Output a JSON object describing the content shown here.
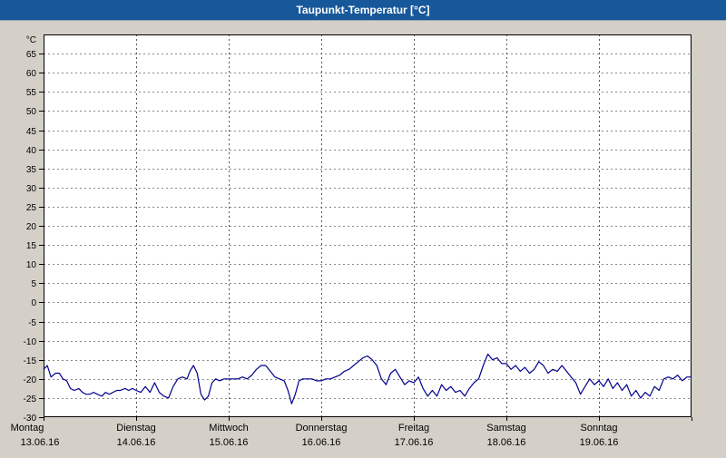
{
  "window": {
    "title": "Taupunkt-Temperatur [°C]"
  },
  "colors": {
    "titlebar": "#17589b",
    "line": "#00008b",
    "background": "#d4d0c8",
    "plot_bg": "#ffffff",
    "grid_h": "#888888",
    "grid_v": "#555555",
    "axis": "#000000"
  },
  "chart_data": {
    "type": "line",
    "title": "Taupunkt-Temperatur [°C]",
    "ylabel": "°C",
    "xlabel": "",
    "ylim": [
      -30,
      70
    ],
    "ytick_step": 5,
    "yticks": [
      65,
      60,
      55,
      50,
      45,
      40,
      35,
      30,
      25,
      20,
      15,
      10,
      5,
      0,
      -5,
      -10,
      -15,
      -20,
      -25,
      -30
    ],
    "grid": true,
    "legend": "none",
    "line_color": "#00008b",
    "x_categories": [
      {
        "label": "Montag",
        "date": "13.06.16"
      },
      {
        "label": "Dienstag",
        "date": "14.06.16"
      },
      {
        "label": "Mittwoch",
        "date": "15.06.16"
      },
      {
        "label": "Donnerstag",
        "date": "16.06.16"
      },
      {
        "label": "Freitag",
        "date": "17.06.16"
      },
      {
        "label": "Samstag",
        "date": "18.06.16"
      },
      {
        "label": "Sonntag",
        "date": "19.06.16"
      }
    ],
    "series": [
      {
        "name": "Taupunkt",
        "points": [
          [
            0.0,
            -17.5
          ],
          [
            0.04,
            -16.5
          ],
          [
            0.08,
            -19.5
          ],
          [
            0.13,
            -18.5
          ],
          [
            0.17,
            -18.5
          ],
          [
            0.21,
            -20.0
          ],
          [
            0.25,
            -20.5
          ],
          [
            0.29,
            -22.5
          ],
          [
            0.33,
            -23.0
          ],
          [
            0.38,
            -22.5
          ],
          [
            0.42,
            -23.5
          ],
          [
            0.46,
            -24.0
          ],
          [
            0.5,
            -24.0
          ],
          [
            0.54,
            -23.5
          ],
          [
            0.58,
            -24.0
          ],
          [
            0.63,
            -24.5
          ],
          [
            0.67,
            -23.5
          ],
          [
            0.71,
            -24.0
          ],
          [
            0.75,
            -23.5
          ],
          [
            0.79,
            -23.0
          ],
          [
            0.83,
            -23.0
          ],
          [
            0.88,
            -22.5
          ],
          [
            0.92,
            -23.0
          ],
          [
            0.96,
            -22.5
          ],
          [
            1.0,
            -23.0
          ],
          [
            1.05,
            -23.5
          ],
          [
            1.1,
            -22.0
          ],
          [
            1.15,
            -23.5
          ],
          [
            1.2,
            -21.0
          ],
          [
            1.25,
            -23.5
          ],
          [
            1.3,
            -24.5
          ],
          [
            1.35,
            -25.0
          ],
          [
            1.4,
            -22.0
          ],
          [
            1.45,
            -20.0
          ],
          [
            1.5,
            -19.5
          ],
          [
            1.55,
            -20.0
          ],
          [
            1.58,
            -18.0
          ],
          [
            1.62,
            -16.5
          ],
          [
            1.66,
            -18.5
          ],
          [
            1.7,
            -24.0
          ],
          [
            1.74,
            -25.5
          ],
          [
            1.78,
            -24.5
          ],
          [
            1.82,
            -21.0
          ],
          [
            1.86,
            -20.0
          ],
          [
            1.9,
            -20.5
          ],
          [
            1.95,
            -20.0
          ],
          [
            2.0,
            -20.0
          ],
          [
            2.05,
            -20.0
          ],
          [
            2.1,
            -20.0
          ],
          [
            2.15,
            -19.5
          ],
          [
            2.2,
            -20.0
          ],
          [
            2.25,
            -19.0
          ],
          [
            2.3,
            -17.5
          ],
          [
            2.35,
            -16.5
          ],
          [
            2.4,
            -16.5
          ],
          [
            2.45,
            -18.0
          ],
          [
            2.5,
            -19.5
          ],
          [
            2.55,
            -20.0
          ],
          [
            2.6,
            -20.5
          ],
          [
            2.64,
            -23.0
          ],
          [
            2.68,
            -26.5
          ],
          [
            2.72,
            -24.0
          ],
          [
            2.76,
            -20.5
          ],
          [
            2.8,
            -20.0
          ],
          [
            2.85,
            -20.0
          ],
          [
            2.9,
            -20.0
          ],
          [
            2.95,
            -20.5
          ],
          [
            3.0,
            -20.5
          ],
          [
            3.05,
            -20.0
          ],
          [
            3.1,
            -20.0
          ],
          [
            3.15,
            -19.5
          ],
          [
            3.2,
            -19.0
          ],
          [
            3.25,
            -18.0
          ],
          [
            3.3,
            -17.5
          ],
          [
            3.35,
            -16.5
          ],
          [
            3.4,
            -15.5
          ],
          [
            3.45,
            -14.5
          ],
          [
            3.5,
            -14.0
          ],
          [
            3.55,
            -15.0
          ],
          [
            3.6,
            -16.5
          ],
          [
            3.65,
            -20.0
          ],
          [
            3.7,
            -21.5
          ],
          [
            3.75,
            -18.5
          ],
          [
            3.8,
            -17.5
          ],
          [
            3.85,
            -19.5
          ],
          [
            3.9,
            -21.5
          ],
          [
            3.95,
            -20.5
          ],
          [
            4.0,
            -21.0
          ],
          [
            4.05,
            -19.5
          ],
          [
            4.1,
            -22.5
          ],
          [
            4.15,
            -24.5
          ],
          [
            4.2,
            -23.0
          ],
          [
            4.25,
            -24.5
          ],
          [
            4.3,
            -21.5
          ],
          [
            4.35,
            -23.0
          ],
          [
            4.4,
            -22.0
          ],
          [
            4.45,
            -23.5
          ],
          [
            4.5,
            -23.0
          ],
          [
            4.55,
            -24.5
          ],
          [
            4.6,
            -22.5
          ],
          [
            4.65,
            -21.0
          ],
          [
            4.7,
            -20.0
          ],
          [
            4.75,
            -16.5
          ],
          [
            4.8,
            -13.5
          ],
          [
            4.85,
            -15.0
          ],
          [
            4.9,
            -14.5
          ],
          [
            4.95,
            -16.0
          ],
          [
            5.0,
            -16.0
          ],
          [
            5.05,
            -17.5
          ],
          [
            5.1,
            -16.5
          ],
          [
            5.15,
            -18.0
          ],
          [
            5.2,
            -17.0
          ],
          [
            5.25,
            -18.5
          ],
          [
            5.3,
            -17.5
          ],
          [
            5.35,
            -15.5
          ],
          [
            5.4,
            -16.5
          ],
          [
            5.45,
            -18.5
          ],
          [
            5.5,
            -17.5
          ],
          [
            5.55,
            -18.0
          ],
          [
            5.6,
            -16.5
          ],
          [
            5.65,
            -18.0
          ],
          [
            5.7,
            -19.5
          ],
          [
            5.75,
            -21.0
          ],
          [
            5.8,
            -24.0
          ],
          [
            5.85,
            -22.0
          ],
          [
            5.9,
            -20.0
          ],
          [
            5.95,
            -21.5
          ],
          [
            6.0,
            -20.5
          ],
          [
            6.05,
            -22.0
          ],
          [
            6.1,
            -20.0
          ],
          [
            6.15,
            -22.5
          ],
          [
            6.2,
            -21.0
          ],
          [
            6.25,
            -23.0
          ],
          [
            6.3,
            -21.5
          ],
          [
            6.35,
            -24.5
          ],
          [
            6.4,
            -23.0
          ],
          [
            6.45,
            -25.0
          ],
          [
            6.5,
            -23.5
          ],
          [
            6.55,
            -24.5
          ],
          [
            6.6,
            -22.0
          ],
          [
            6.65,
            -23.0
          ],
          [
            6.7,
            -20.0
          ],
          [
            6.75,
            -19.5
          ],
          [
            6.8,
            -20.0
          ],
          [
            6.85,
            -19.0
          ],
          [
            6.9,
            -20.5
          ],
          [
            6.95,
            -19.5
          ],
          [
            7.0,
            -19.5
          ]
        ]
      }
    ]
  }
}
